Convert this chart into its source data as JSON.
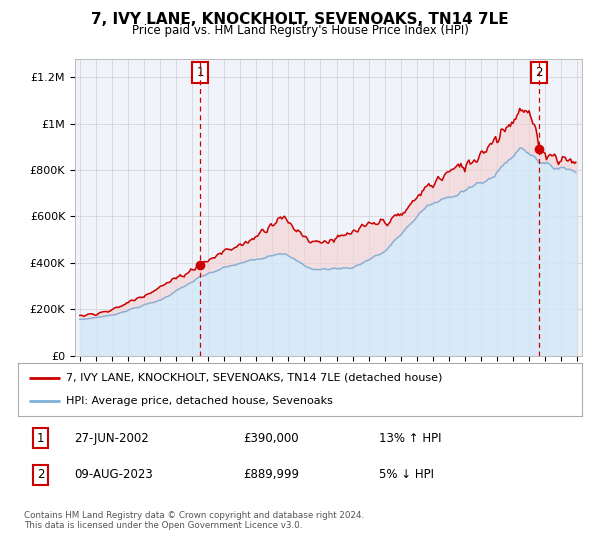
{
  "title": "7, IVY LANE, KNOCKHOLT, SEVENOAKS, TN14 7LE",
  "subtitle": "Price paid vs. HM Land Registry's House Price Index (HPI)",
  "ylabel_ticks": [
    "£0",
    "£200K",
    "£400K",
    "£600K",
    "£800K",
    "£1M",
    "£1.2M"
  ],
  "ytick_vals": [
    0,
    200000,
    400000,
    600000,
    800000,
    1000000,
    1200000
  ],
  "ylim": [
    0,
    1280000
  ],
  "xlim_start": 1994.7,
  "xlim_end": 2026.3,
  "xticks": [
    1995,
    1996,
    1997,
    1998,
    1999,
    2000,
    2001,
    2002,
    2003,
    2004,
    2005,
    2006,
    2007,
    2008,
    2009,
    2010,
    2011,
    2012,
    2013,
    2014,
    2015,
    2016,
    2017,
    2018,
    2019,
    2020,
    2021,
    2022,
    2023,
    2024,
    2025,
    2026
  ],
  "transaction1_date": 2002.49,
  "transaction1_price": 390000,
  "transaction1_label": "1",
  "transaction2_date": 2023.6,
  "transaction2_price": 889999,
  "transaction2_label": "2",
  "legend_line1": "7, IVY LANE, KNOCKHOLT, SEVENOAKS, TN14 7LE (detached house)",
  "legend_line2": "HPI: Average price, detached house, Sevenoaks",
  "footer": "Contains HM Land Registry data © Crown copyright and database right 2024.\nThis data is licensed under the Open Government Licence v3.0.",
  "property_color": "#cc0000",
  "hpi_color": "#7fb0d8",
  "hpi_fill_color": "#d4e8f7",
  "bg_color": "#ffffff",
  "grid_color": "#d0d0d0"
}
